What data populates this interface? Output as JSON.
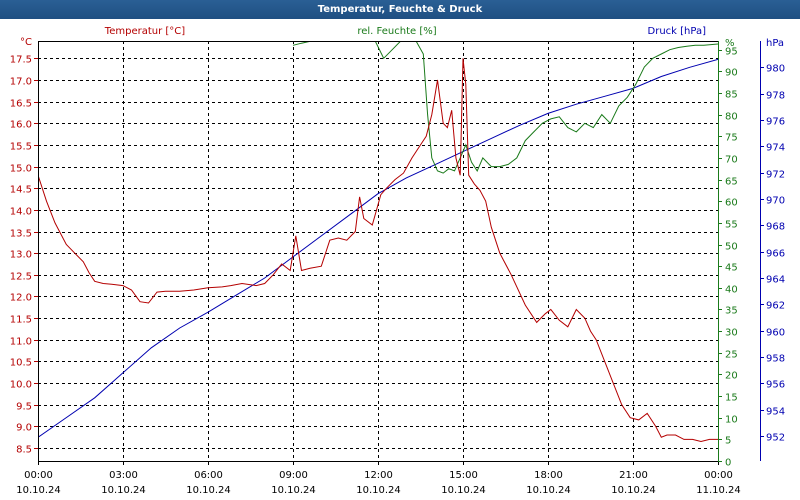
{
  "title": "Temperatur, Feuchte & Druck",
  "chart_data": {
    "type": "line",
    "title": "Temperatur, Feuchte & Druck",
    "x_ticks": [
      {
        "time": "00:00",
        "date": "10.10.24"
      },
      {
        "time": "03:00",
        "date": "10.10.24"
      },
      {
        "time": "06:00",
        "date": "10.10.24"
      },
      {
        "time": "09:00",
        "date": "10.10.24"
      },
      {
        "time": "12:00",
        "date": "10.10.24"
      },
      {
        "time": "15:00",
        "date": "10.10.24"
      },
      {
        "time": "18:00",
        "date": "10.10.24"
      },
      {
        "time": "21:00",
        "date": "10.10.24"
      },
      {
        "time": "00:00",
        "date": "11.10.24"
      }
    ],
    "xlim_hours": [
      0,
      24
    ],
    "axes": {
      "temperature": {
        "label": "Temperatur [°C]",
        "unit": "°C",
        "ylim": [
          8.2,
          17.9
        ],
        "ticks": [
          8.5,
          9.0,
          9.5,
          10.0,
          10.5,
          11.0,
          11.5,
          12.0,
          12.5,
          13.0,
          13.5,
          14.0,
          14.5,
          15.0,
          15.5,
          16.0,
          16.5,
          17.0,
          17.5
        ],
        "color": "#b40000"
      },
      "humidity": {
        "label": "rel. Feuchte [%]",
        "unit": "%",
        "ylim": [
          0,
          97
        ],
        "ticks": [
          0,
          5,
          10,
          15,
          20,
          25,
          30,
          35,
          40,
          45,
          50,
          55,
          60,
          65,
          70,
          75,
          80,
          85,
          90,
          95
        ],
        "color": "#1a7a1a"
      },
      "pressure": {
        "label": "Druck [hPa]",
        "unit": "hPa",
        "ylim": [
          950.1,
          982.0
        ],
        "ticks": [
          952,
          954,
          956,
          958,
          960,
          962,
          964,
          966,
          968,
          970,
          972,
          974,
          976,
          978,
          980
        ],
        "color": "#0000b0"
      }
    },
    "series": [
      {
        "name": "Temperatur",
        "axis": "temperature",
        "color": "#b40000",
        "x": [
          0,
          0.3,
          0.6,
          1.0,
          1.3,
          1.6,
          1.8,
          2.0,
          2.3,
          2.6,
          3.0,
          3.3,
          3.6,
          3.9,
          4.2,
          4.5,
          5.0,
          5.5,
          6.0,
          6.5,
          6.8,
          7.2,
          7.7,
          8.0,
          8.3,
          8.6,
          8.9,
          9.1,
          9.3,
          9.6,
          10.0,
          10.3,
          10.6,
          10.9,
          11.2,
          11.35,
          11.5,
          11.8,
          12.1,
          12.3,
          12.6,
          12.9,
          13.2,
          13.5,
          13.7,
          13.9,
          14.1,
          14.3,
          14.45,
          14.6,
          14.75,
          14.9,
          15.0,
          15.1,
          15.2,
          15.4,
          15.6,
          15.8,
          16.0,
          16.3,
          16.7,
          17.2,
          17.6,
          17.9,
          18.1,
          18.4,
          18.7,
          19.0,
          19.3,
          19.5,
          19.7,
          20.0,
          20.3,
          20.6,
          20.9,
          21.2,
          21.5,
          21.8,
          22.0,
          22.2,
          22.5,
          22.8,
          23.1,
          23.4,
          23.7,
          24.0
        ],
        "y": [
          14.8,
          14.2,
          13.7,
          13.2,
          13.0,
          12.8,
          12.55,
          12.35,
          12.3,
          12.28,
          12.25,
          12.15,
          11.88,
          11.85,
          12.1,
          12.12,
          12.12,
          12.15,
          12.2,
          12.22,
          12.25,
          12.3,
          12.25,
          12.3,
          12.5,
          12.75,
          12.6,
          13.4,
          12.6,
          12.65,
          12.7,
          13.3,
          13.35,
          13.3,
          13.5,
          14.3,
          13.8,
          13.65,
          14.35,
          14.5,
          14.7,
          14.85,
          15.2,
          15.5,
          15.7,
          16.2,
          17.0,
          16.0,
          15.9,
          16.3,
          15.2,
          14.8,
          17.5,
          16.9,
          14.8,
          14.6,
          14.45,
          14.2,
          13.6,
          13.0,
          12.5,
          11.8,
          11.4,
          11.6,
          11.7,
          11.45,
          11.3,
          11.7,
          11.5,
          11.2,
          11.0,
          10.5,
          10.0,
          9.5,
          9.2,
          9.15,
          9.3,
          9.0,
          8.75,
          8.8,
          8.8,
          8.7,
          8.7,
          8.65,
          8.7,
          8.7
        ]
      },
      {
        "name": "rel. Feuchte",
        "axis": "humidity",
        "color": "#1a7a1a",
        "x": [
          9.0,
          9.3,
          10.0,
          10.5,
          11.0,
          11.3,
          11.6,
          11.9,
          12.2,
          12.5,
          12.8,
          13.0,
          13.3,
          13.6,
          13.75,
          13.9,
          14.1,
          14.3,
          14.5,
          14.7,
          14.9,
          15.1,
          15.3,
          15.5,
          15.7,
          16.0,
          16.3,
          16.6,
          16.9,
          17.2,
          17.5,
          17.8,
          18.1,
          18.4,
          18.7,
          19.0,
          19.3,
          19.6,
          19.9,
          20.2,
          20.5,
          20.8,
          21.1,
          21.4,
          21.7,
          22.0,
          22.3,
          22.6,
          22.9,
          23.2,
          23.5,
          23.8,
          24.0
        ],
        "y": [
          96.0,
          96.5,
          97.5,
          97.5,
          97.5,
          97.5,
          97.5,
          97.0,
          93.0,
          95.0,
          97.0,
          97.5,
          97.5,
          94.0,
          80.0,
          70.0,
          67.0,
          66.5,
          67.5,
          67.0,
          70.0,
          73.0,
          69.0,
          67.0,
          70.0,
          68.0,
          68.0,
          68.5,
          70.0,
          74.0,
          76.0,
          78.0,
          79.0,
          79.5,
          77.0,
          76.0,
          78.0,
          77.0,
          80.0,
          78.0,
          82.0,
          84.0,
          87.0,
          91.0,
          93.0,
          94.0,
          95.0,
          95.5,
          95.8,
          96.0,
          96.0,
          96.2,
          96.3
        ]
      },
      {
        "name": "Druck",
        "axis": "pressure",
        "color": "#0000b0",
        "x": [
          0,
          1,
          2,
          3,
          4,
          5,
          6,
          7,
          8,
          9,
          10,
          11,
          12,
          13,
          14,
          15,
          16,
          17,
          18,
          19,
          20,
          21,
          22,
          23,
          24
        ],
        "y": [
          951.9,
          953.4,
          954.9,
          956.8,
          958.7,
          960.2,
          961.4,
          962.7,
          964.0,
          965.6,
          967.2,
          968.8,
          970.4,
          971.6,
          972.6,
          973.6,
          974.6,
          975.6,
          976.5,
          977.2,
          977.8,
          978.4,
          979.3,
          980.0,
          980.6
        ]
      }
    ]
  }
}
